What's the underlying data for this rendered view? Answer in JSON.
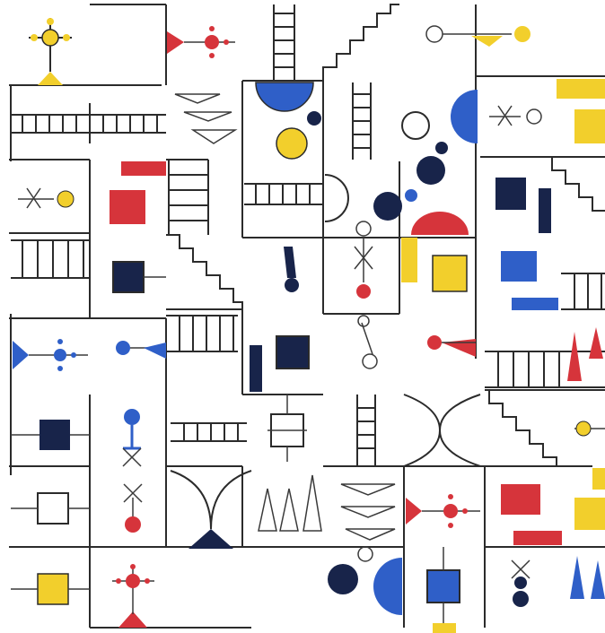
{
  "artwork": {
    "palette": {
      "red": "#d6343b",
      "blue": "#2f5fc8",
      "yellow": "#f2cf2c",
      "navy": "#18244a",
      "line": "#2b2b2b",
      "background": "#ffffff"
    },
    "motifs": [
      "ladders",
      "staircases",
      "hourglass-arcs",
      "semicircles",
      "circles",
      "squares",
      "triangles",
      "figure-glyphs"
    ]
  }
}
